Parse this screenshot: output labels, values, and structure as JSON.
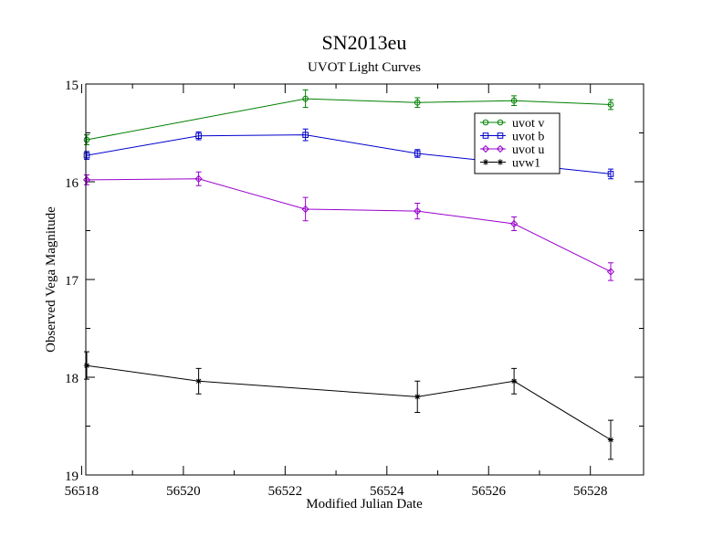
{
  "chart_data": {
    "type": "scatter",
    "title": "SN2013eu",
    "subtitle": "UVOT Light Curves",
    "xlabel": "Modified Julian Date",
    "ylabel": "Observed Vega Magnitude",
    "xlim": [
      56518,
      56529
    ],
    "ylim": [
      15,
      19
    ],
    "y_inverted": true,
    "x_ticks": [
      56518,
      56520,
      56522,
      56524,
      56526,
      56528
    ],
    "y_ticks": [
      15,
      16,
      17,
      18,
      19
    ],
    "legend_position": "top-right",
    "series": [
      {
        "name": "uvot v",
        "color": "#008000",
        "marker": "circle",
        "x": [
          56518.1,
          56522.4,
          56524.6,
          56526.5,
          56528.4
        ],
        "y": [
          15.57,
          15.15,
          15.19,
          15.17,
          15.21
        ],
        "yerr": [
          0.05,
          0.09,
          0.05,
          0.05,
          0.05
        ]
      },
      {
        "name": "uvot b",
        "color": "#0000cc",
        "marker": "square",
        "x": [
          56518.1,
          56520.3,
          56522.4,
          56524.6,
          56528.4
        ],
        "y": [
          15.73,
          15.53,
          15.52,
          15.71,
          15.92
        ],
        "yerr": [
          0.04,
          0.04,
          0.06,
          0.04,
          0.05
        ]
      },
      {
        "name": "uvot u",
        "color": "#9900cc",
        "marker": "diamond",
        "x": [
          56518.1,
          56520.3,
          56522.4,
          56524.6,
          56526.5,
          56528.4
        ],
        "y": [
          15.98,
          15.97,
          16.28,
          16.3,
          16.43,
          16.92
        ],
        "yerr": [
          0.05,
          0.07,
          0.12,
          0.08,
          0.07,
          0.09
        ]
      },
      {
        "name": "uvw1",
        "color": "#000000",
        "marker": "star",
        "x": [
          56518.1,
          56520.3,
          56524.6,
          56526.5,
          56528.4
        ],
        "y": [
          17.88,
          18.04,
          18.2,
          18.04,
          18.64
        ],
        "yerr": [
          0.14,
          0.13,
          0.16,
          0.13,
          0.2
        ]
      }
    ]
  }
}
